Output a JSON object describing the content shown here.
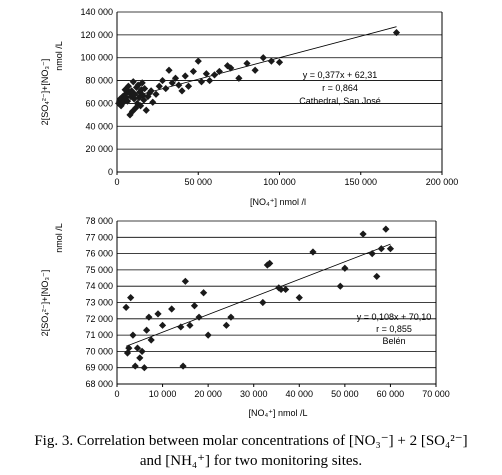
{
  "chart_data": [
    {
      "type": "scatter",
      "xlabel": "[NO₄⁺]   nmol /l",
      "ylabel_main": "2[SO₄²⁻]+[NO₃⁻]",
      "ylabel_unit": "nmol /L",
      "xlim": [
        0,
        200000
      ],
      "ylim": [
        0,
        140000
      ],
      "xticks": [
        0,
        50000,
        100000,
        150000,
        200000
      ],
      "yticks": [
        0,
        20000,
        40000,
        60000,
        80000,
        100000,
        120000,
        140000
      ],
      "xtick_labels": [
        "0",
        "50 000",
        "100 000",
        "150 000",
        "200 000"
      ],
      "ytick_labels": [
        "0",
        "20 000",
        "40 000",
        "60 000",
        "80 000",
        "100 000",
        "120 000",
        "140 000"
      ],
      "grid": "horizontal",
      "trend": {
        "slope": 0.377,
        "intercept": 62310,
        "x_range": [
          0,
          172000
        ]
      },
      "annotation": [
        "y = 0,377x + 62,31",
        "r = 0,864",
        "Cathedral, San José"
      ],
      "points": [
        [
          1000,
          60000
        ],
        [
          1500,
          62000
        ],
        [
          2000,
          64000
        ],
        [
          2500,
          58000
        ],
        [
          3000,
          63000
        ],
        [
          3500,
          66000
        ],
        [
          4000,
          61000
        ],
        [
          4500,
          67000
        ],
        [
          5000,
          72000
        ],
        [
          5500,
          65000
        ],
        [
          6000,
          69000
        ],
        [
          6500,
          62000
        ],
        [
          7000,
          75000
        ],
        [
          7500,
          70000
        ],
        [
          8000,
          50000
        ],
        [
          8500,
          66000
        ],
        [
          9000,
          71000
        ],
        [
          9500,
          53000
        ],
        [
          10000,
          79000
        ],
        [
          10500,
          64000
        ],
        [
          11000,
          68000
        ],
        [
          11500,
          56000
        ],
        [
          12000,
          74000
        ],
        [
          12500,
          60000
        ],
        [
          13000,
          76000
        ],
        [
          13500,
          65000
        ],
        [
          14000,
          70000
        ],
        [
          14500,
          58000
        ],
        [
          15000,
          72000
        ],
        [
          15500,
          78000
        ],
        [
          16000,
          67000
        ],
        [
          16500,
          63000
        ],
        [
          17000,
          73000
        ],
        [
          18000,
          54000
        ],
        [
          19000,
          66000
        ],
        [
          20000,
          69000
        ],
        [
          21000,
          71000
        ],
        [
          22000,
          61000
        ],
        [
          24000,
          68000
        ],
        [
          26000,
          75000
        ],
        [
          28000,
          80000
        ],
        [
          30000,
          73000
        ],
        [
          32000,
          89000
        ],
        [
          34000,
          78000
        ],
        [
          36000,
          82000
        ],
        [
          38000,
          76000
        ],
        [
          40000,
          71000
        ],
        [
          42000,
          84000
        ],
        [
          44000,
          75000
        ],
        [
          47000,
          88000
        ],
        [
          50000,
          97000
        ],
        [
          52000,
          79000
        ],
        [
          55000,
          86000
        ],
        [
          57000,
          80000
        ],
        [
          60000,
          85000
        ],
        [
          63000,
          88000
        ],
        [
          68000,
          93000
        ],
        [
          70000,
          91000
        ],
        [
          75000,
          82000
        ],
        [
          80000,
          95000
        ],
        [
          85000,
          89000
        ],
        [
          90000,
          100000
        ],
        [
          95000,
          97000
        ],
        [
          100000,
          96000
        ],
        [
          172000,
          122000
        ]
      ]
    },
    {
      "type": "scatter",
      "xlabel": "[NO₄⁺]   nmol /L",
      "ylabel_main": "2[SO₄²⁻]+[NO₃⁻]",
      "ylabel_unit": "nmol /L",
      "xlim": [
        0,
        70000
      ],
      "ylim": [
        68000,
        78000
      ],
      "xticks": [
        0,
        10000,
        20000,
        30000,
        40000,
        50000,
        60000,
        70000
      ],
      "yticks": [
        68000,
        69000,
        70000,
        71000,
        72000,
        73000,
        74000,
        75000,
        76000,
        77000,
        78000
      ],
      "xtick_labels": [
        "0",
        "10 000",
        "20 000",
        "30 000",
        "40 000",
        "50 000",
        "60 000",
        "70 000"
      ],
      "ytick_labels": [
        "68 000",
        "69 000",
        "70 000",
        "71 000",
        "72 000",
        "73 000",
        "74 000",
        "75 000",
        "76 000",
        "77 000",
        "78 000"
      ],
      "grid": "horizontal",
      "trend": {
        "slope": 0.108,
        "intercept": 70100,
        "x_range": [
          2000,
          60000
        ]
      },
      "annotation": [
        "y = 0,108x + 70,10",
        "r = 0,855",
        "Belén"
      ],
      "points": [
        [
          2000,
          72700
        ],
        [
          2300,
          69900
        ],
        [
          2600,
          70200
        ],
        [
          3000,
          73300
        ],
        [
          3500,
          71000
        ],
        [
          4000,
          69100
        ],
        [
          4500,
          70200
        ],
        [
          5000,
          69600
        ],
        [
          5500,
          70000
        ],
        [
          6000,
          69000
        ],
        [
          6500,
          71300
        ],
        [
          7000,
          72100
        ],
        [
          7500,
          70700
        ],
        [
          9000,
          72300
        ],
        [
          10000,
          71600
        ],
        [
          12000,
          72600
        ],
        [
          14000,
          71500
        ],
        [
          15000,
          74300
        ],
        [
          16000,
          71600
        ],
        [
          17000,
          72800
        ],
        [
          18000,
          72100
        ],
        [
          19000,
          73600
        ],
        [
          20000,
          71000
        ],
        [
          24000,
          71600
        ],
        [
          25000,
          72100
        ],
        [
          32000,
          73000
        ],
        [
          33000,
          75300
        ],
        [
          33500,
          75400
        ],
        [
          36000,
          73800
        ],
        [
          37000,
          73800
        ],
        [
          40000,
          73300
        ],
        [
          43000,
          76100
        ],
        [
          49000,
          74000
        ],
        [
          50000,
          75100
        ],
        [
          54000,
          77200
        ],
        [
          56000,
          76000
        ],
        [
          57000,
          74600
        ],
        [
          58000,
          76300
        ],
        [
          59000,
          77500
        ],
        [
          60000,
          76300
        ],
        [
          14500,
          69100
        ],
        [
          35500,
          73900
        ]
      ]
    }
  ],
  "caption": {
    "line1": "Fig. 3. Correlation between molar concentrations of [NO₃⁻] + 2 [SO₄²⁻]",
    "line2": "and [NH₄⁺] for two monitoring sites."
  },
  "colors": {
    "marker": "#1a1a1a",
    "axis": "#000000",
    "grid": "#000000"
  }
}
